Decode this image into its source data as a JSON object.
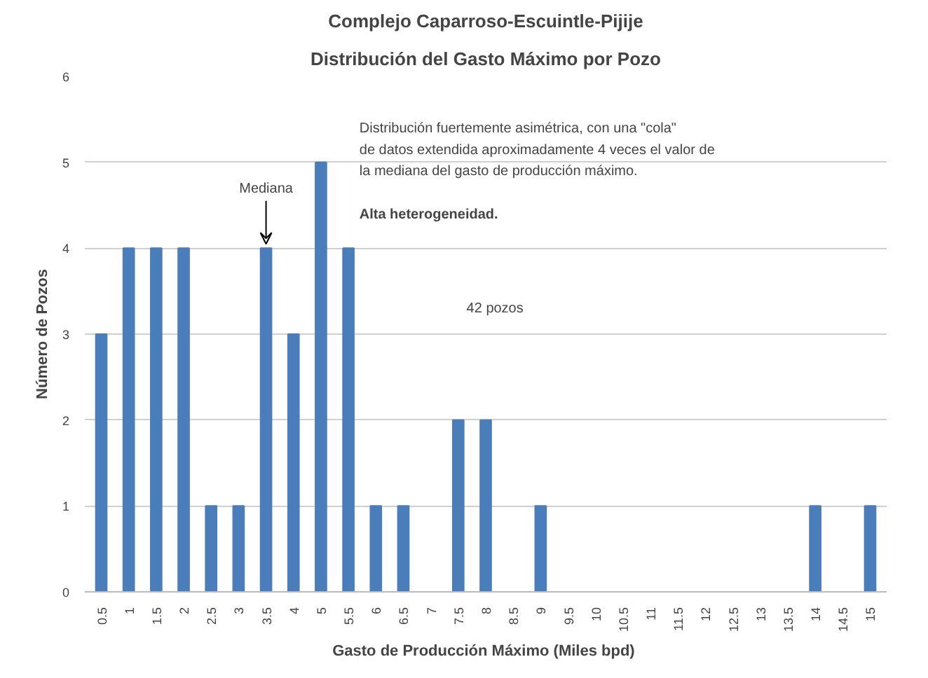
{
  "chart_data": {
    "type": "bar",
    "title": "Complejo Caparroso-Escuintle-Pijije",
    "subtitle": "Distribución del Gasto Máximo por Pozo",
    "xlabel": "Gasto de Producción  Máximo (Miles bpd)",
    "ylabel": "Número de Pozos",
    "categories": [
      "0.5",
      "1",
      "1.5",
      "2",
      "2.5",
      "3",
      "3.5",
      "4",
      "5",
      "5.5",
      "6",
      "6.5",
      "7",
      "7.5",
      "8",
      "8.5",
      "9",
      "9.5",
      "10",
      "10.5",
      "11",
      "11.5",
      "12",
      "12.5",
      "13",
      "13.5",
      "14",
      "14.5",
      "15"
    ],
    "values": [
      3,
      4,
      4,
      4,
      1,
      1,
      4,
      3,
      5,
      4,
      1,
      1,
      0,
      2,
      2,
      0,
      1,
      0,
      0,
      0,
      0,
      0,
      0,
      0,
      0,
      0,
      1,
      0,
      1
    ],
    "color": "#4a7ebb",
    "ylim": [
      0,
      6
    ],
    "yticks": [
      0,
      1,
      2,
      3,
      4,
      5,
      6
    ],
    "grid": "y",
    "annotations": [
      {
        "text": "Mediana",
        "x": "3.5",
        "y": 4
      },
      "Distribución fuertemente asimétrica, con una \"cola\"",
      "de datos extendida aproximadamente  4  veces el valor de",
      "la mediana del gasto de producción máximo.",
      "Alta heterogeneidad.",
      "42 pozos"
    ]
  }
}
